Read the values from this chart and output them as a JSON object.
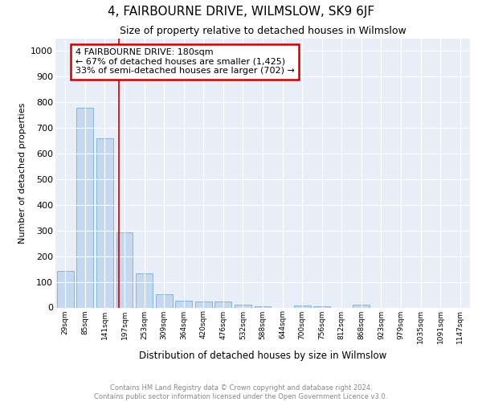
{
  "title": "4, FAIRBOURNE DRIVE, WILMSLOW, SK9 6JF",
  "subtitle": "Size of property relative to detached houses in Wilmslow",
  "xlabel": "Distribution of detached houses by size in Wilmslow",
  "ylabel": "Number of detached properties",
  "categories": [
    "29sqm",
    "85sqm",
    "141sqm",
    "197sqm",
    "253sqm",
    "309sqm",
    "364sqm",
    "420sqm",
    "476sqm",
    "532sqm",
    "588sqm",
    "644sqm",
    "700sqm",
    "756sqm",
    "812sqm",
    "868sqm",
    "923sqm",
    "979sqm",
    "1035sqm",
    "1091sqm",
    "1147sqm"
  ],
  "values": [
    143,
    778,
    660,
    292,
    133,
    53,
    28,
    22,
    22,
    12,
    5,
    0,
    7,
    5,
    0,
    10,
    0,
    0,
    0,
    0,
    0
  ],
  "bar_color": "#c5d8f0",
  "bar_edge_color": "#7aadd4",
  "vline_x": 2.72,
  "vline_color": "#cc0000",
  "annotation_text": "4 FAIRBOURNE DRIVE: 180sqm\n← 67% of detached houses are smaller (1,425)\n33% of semi-detached houses are larger (702) →",
  "annotation_box_color": "#cc0000",
  "ylim": [
    0,
    1050
  ],
  "yticks": [
    0,
    100,
    200,
    300,
    400,
    500,
    600,
    700,
    800,
    900,
    1000
  ],
  "bg_color": "#e8eef8",
  "grid_color": "#ffffff",
  "fig_bg_color": "#ffffff",
  "footer_line1": "Contains HM Land Registry data © Crown copyright and database right 2024.",
  "footer_line2": "Contains public sector information licensed under the Open Government Licence v3.0."
}
